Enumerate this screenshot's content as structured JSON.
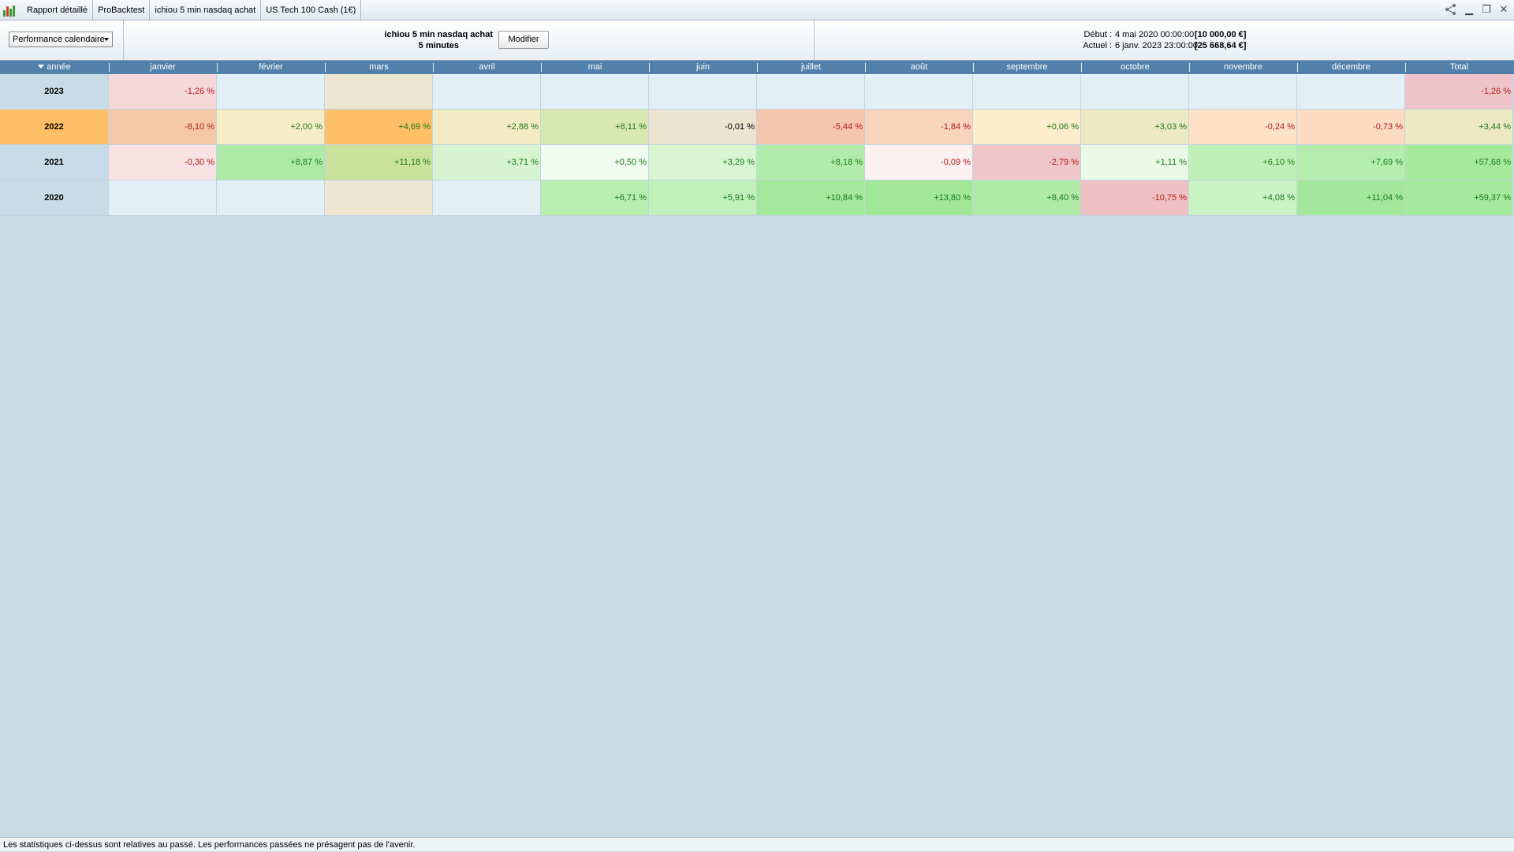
{
  "window": {
    "tabs": [
      {
        "label": "Rapport détaillé"
      },
      {
        "label": "ProBacktest"
      },
      {
        "label": "ichiou 5 min nasdaq achat"
      },
      {
        "label": "US Tech 100 Cash (1€)"
      }
    ],
    "controls": [
      "share-icon",
      "minimize-icon",
      "restore-icon",
      "close-icon"
    ]
  },
  "header": {
    "view_select": "Performance calendaire",
    "strategy_name": "ichiou 5 min nasdaq achat",
    "timeframe": "5 minutes",
    "modify_label": "Modifier",
    "start_label": "Début :",
    "start_date": "4 mai 2020 00:00:00",
    "start_value": "[10 000,00 €]",
    "current_label": "Actuel :",
    "current_date": "6 janv. 2023 23:00:00",
    "current_value": "[25 668,64 €]"
  },
  "table": {
    "columns": [
      "année",
      "janvier",
      "février",
      "mars",
      "avril",
      "mai",
      "juin",
      "juillet",
      "août",
      "septembre",
      "octobre",
      "novembre",
      "décembre",
      "Total"
    ],
    "rows": [
      {
        "year": "2023",
        "cells": [
          {
            "v": "-1,26 %",
            "c": "#f5d6d9",
            "t": "neg"
          },
          {
            "v": "",
            "c": "#e2eff6",
            "t": "neu"
          },
          {
            "v": "",
            "c": "#ece6d2",
            "t": "neu"
          },
          {
            "v": "",
            "c": "#e2eff6",
            "t": "neu"
          },
          {
            "v": "",
            "c": "#e2eff6",
            "t": "neu"
          },
          {
            "v": "",
            "c": "#e2eff6",
            "t": "neu"
          },
          {
            "v": "",
            "c": "#e2eff6",
            "t": "neu"
          },
          {
            "v": "",
            "c": "#e2eff6",
            "t": "neu"
          },
          {
            "v": "",
            "c": "#e2eff6",
            "t": "neu"
          },
          {
            "v": "",
            "c": "#e2eff6",
            "t": "neu"
          },
          {
            "v": "",
            "c": "#e2eff6",
            "t": "neu"
          },
          {
            "v": "",
            "c": "#e2eff6",
            "t": "neu"
          },
          {
            "v": "-1,26 %",
            "c": "#efc4c8",
            "t": "neg"
          }
        ]
      },
      {
        "year": "2022",
        "selected": true,
        "cells": [
          {
            "v": "-8,10 %",
            "c": "#f5c9a8",
            "t": "neg"
          },
          {
            "v": "+2,00 %",
            "c": "#f6ecc6",
            "t": "pos"
          },
          {
            "v": "+4,69 %",
            "c": "#ffbf66",
            "t": "pos"
          },
          {
            "v": "+2,88 %",
            "c": "#f2ebc4",
            "t": "pos"
          },
          {
            "v": "+8,11 %",
            "c": "#d9e8b0",
            "t": "pos"
          },
          {
            "v": "-0,01 %",
            "c": "#ebe4d0",
            "t": "neu"
          },
          {
            "v": "-5,44 %",
            "c": "#f6c5ae",
            "t": "neg"
          },
          {
            "v": "-1,84 %",
            "c": "#f8d4bd",
            "t": "neg"
          },
          {
            "v": "+0,06 %",
            "c": "#fdedcc",
            "t": "pos"
          },
          {
            "v": "+3,03 %",
            "c": "#ede9c4",
            "t": "pos"
          },
          {
            "v": "-0,24 %",
            "c": "#fde2c8",
            "t": "neg"
          },
          {
            "v": "-0,73 %",
            "c": "#fbdcc2",
            "t": "neg"
          },
          {
            "v": "+3,44 %",
            "c": "#ece9c2",
            "t": "pos"
          }
        ]
      },
      {
        "year": "2021",
        "cells": [
          {
            "v": "-0,30 %",
            "c": "#f8e2e3",
            "t": "neg"
          },
          {
            "v": "+8,87 %",
            "c": "#aeeaa6",
            "t": "pos"
          },
          {
            "v": "+11,18 %",
            "c": "#c9e39c",
            "t": "pos"
          },
          {
            "v": "+3,71 %",
            "c": "#d6f4d0",
            "t": "pos"
          },
          {
            "v": "+0,50 %",
            "c": "#f1fbef",
            "t": "pos"
          },
          {
            "v": "+3,29 %",
            "c": "#d8f5d2",
            "t": "pos"
          },
          {
            "v": "+8,18 %",
            "c": "#b2ecaa",
            "t": "pos"
          },
          {
            "v": "-0,09 %",
            "c": "#fbf1f1",
            "t": "neg"
          },
          {
            "v": "-2,79 %",
            "c": "#efc7ca",
            "t": "neg"
          },
          {
            "v": "+1,11 %",
            "c": "#e9f9e6",
            "t": "pos"
          },
          {
            "v": "+6,10 %",
            "c": "#bff0b8",
            "t": "pos"
          },
          {
            "v": "+7,69 %",
            "c": "#b5edae",
            "t": "pos"
          },
          {
            "v": "+57,68 %",
            "c": "#a6ea9c",
            "t": "pos"
          }
        ]
      },
      {
        "year": "2020",
        "cells": [
          {
            "v": "",
            "c": "#e2eff6",
            "t": "neu"
          },
          {
            "v": "",
            "c": "#e2eff6",
            "t": "neu"
          },
          {
            "v": "",
            "c": "#ece6d2",
            "t": "neu"
          },
          {
            "v": "",
            "c": "#e2eff6",
            "t": "neu"
          },
          {
            "v": "+6,71 %",
            "c": "#b9eeb1",
            "t": "pos"
          },
          {
            "v": "+5,91 %",
            "c": "#c1f0ba",
            "t": "pos"
          },
          {
            "v": "+10,84 %",
            "c": "#a4e89b",
            "t": "pos"
          },
          {
            "v": "+13,80 %",
            "c": "#a1e798",
            "t": "pos"
          },
          {
            "v": "+8,40 %",
            "c": "#afeba7",
            "t": "pos"
          },
          {
            "v": "-10,75 %",
            "c": "#efc1c5",
            "t": "neg"
          },
          {
            "v": "+4,08 %",
            "c": "#caf2c4",
            "t": "pos"
          },
          {
            "v": "+11,04 %",
            "c": "#a3e89a",
            "t": "pos"
          },
          {
            "v": "+59,37 %",
            "c": "#a5e99c",
            "t": "pos"
          }
        ]
      }
    ]
  },
  "footer": {
    "disclaimer": "Les statistiques ci-dessus sont relatives au passé. Les performances passées ne présagent pas de l'avenir."
  }
}
